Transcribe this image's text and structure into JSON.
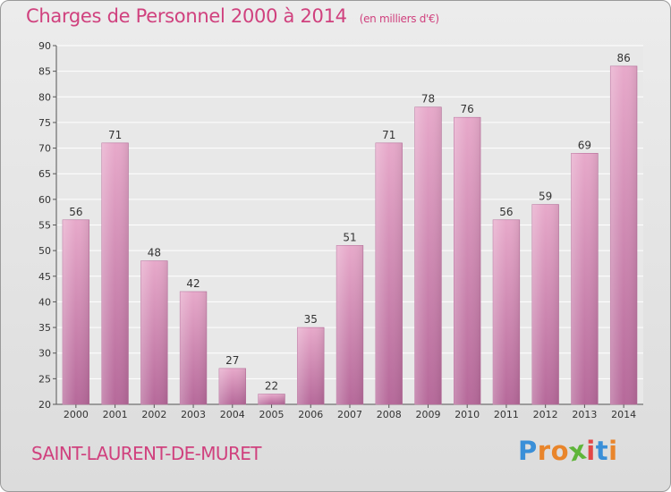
{
  "chart_data": {
    "type": "bar",
    "title": "Charges de Personnel 2000 à 2014",
    "unit_note": "(en milliers d'€)",
    "categories": [
      "2000",
      "2001",
      "2002",
      "2003",
      "2004",
      "2005",
      "2006",
      "2007",
      "2008",
      "2009",
      "2010",
      "2011",
      "2012",
      "2013",
      "2014"
    ],
    "values": [
      56,
      71,
      48,
      42,
      27,
      22,
      35,
      51,
      71,
      78,
      76,
      56,
      59,
      69,
      86
    ],
    "ylim": [
      20,
      90
    ],
    "yticks": [
      20,
      25,
      30,
      35,
      40,
      45,
      50,
      55,
      60,
      65,
      70,
      75,
      80,
      85,
      90
    ],
    "xlabel": "",
    "ylabel": "",
    "grid": true,
    "bar_color": "#d98bb6"
  },
  "commune": "SAINT-LAURENT-DE-MURET",
  "brand": {
    "name": "Proxiti",
    "letters": [
      "P",
      "r",
      "o",
      "x",
      "i",
      "t",
      "i"
    ],
    "colors": [
      "#3a8fd8",
      "#e9852b",
      "#e9852b",
      "#5fb53a",
      "#e24747",
      "#3a8fd8",
      "#e9852b"
    ]
  },
  "colors": {
    "title": "#d0417e",
    "text": "#333333"
  }
}
